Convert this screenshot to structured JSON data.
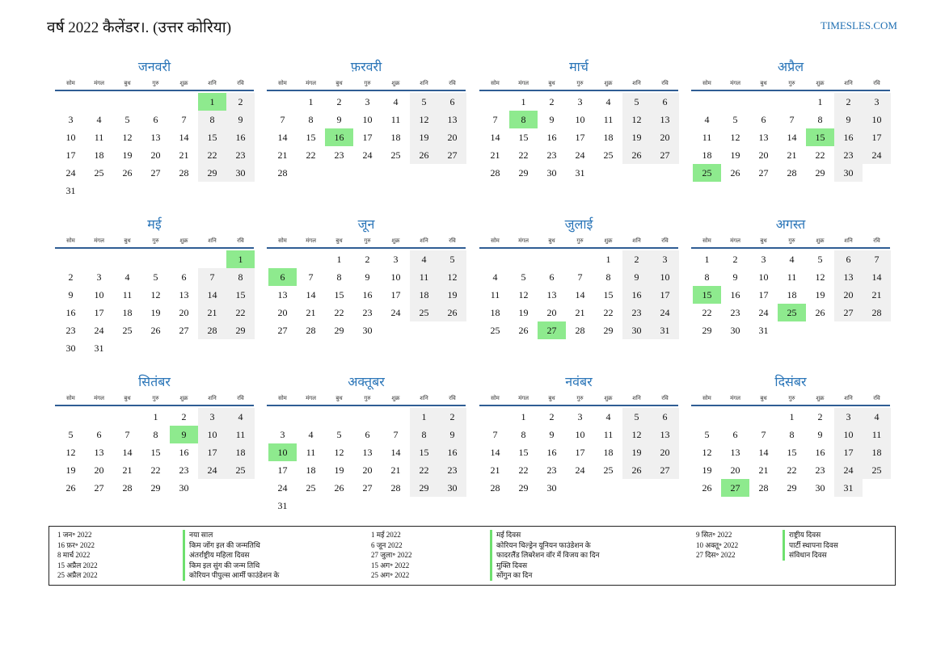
{
  "title": "वर्ष 2022 कैलेंडर।. (उत्तर कोरिया)",
  "brand": "TIMESLES.COM",
  "day_names": [
    "सोम",
    "मंगल",
    "बुध",
    "गुरु",
    "शुक्र",
    "शनि",
    "रवि"
  ],
  "months": [
    {
      "name": "जनवरी",
      "start": 5,
      "days": 31,
      "holidays": [
        1
      ]
    },
    {
      "name": "फ़रवरी",
      "start": 1,
      "days": 28,
      "holidays": [
        16
      ]
    },
    {
      "name": "मार्च",
      "start": 1,
      "days": 31,
      "holidays": [
        8
      ]
    },
    {
      "name": "अप्रैल",
      "start": 4,
      "days": 30,
      "holidays": [
        15,
        25
      ]
    },
    {
      "name": "मई",
      "start": 6,
      "days": 31,
      "holidays": [
        1
      ]
    },
    {
      "name": "जून",
      "start": 2,
      "days": 30,
      "holidays": [
        6
      ]
    },
    {
      "name": "जुलाई",
      "start": 4,
      "days": 31,
      "holidays": [
        27
      ]
    },
    {
      "name": "अगस्त",
      "start": 0,
      "days": 31,
      "holidays": [
        15,
        25
      ]
    },
    {
      "name": "सितंबर",
      "start": 3,
      "days": 30,
      "holidays": [
        9
      ]
    },
    {
      "name": "अक्तूबर",
      "start": 5,
      "days": 31,
      "holidays": [
        10
      ]
    },
    {
      "name": "नवंबर",
      "start": 1,
      "days": 30,
      "holidays": []
    },
    {
      "name": "दिसंबर",
      "start": 3,
      "days": 31,
      "holidays": [
        27
      ]
    }
  ],
  "legend": {
    "col1_dates": [
      "1 जन॰ 2022",
      "16 फ़र॰ 2022",
      "8 मार्च 2022",
      "15 अप्रैल 2022",
      "25 अप्रैल 2022"
    ],
    "col1_names": [
      "नया साल",
      "किम जोंग इल की जन्मतिथि",
      "अंतर्राष्ट्रीय महिला दिवस",
      "किम इल सुंग की जन्म तिथि",
      "कोरियन पीपुल्स आर्मी फाउंडेशन के"
    ],
    "col2_dates": [
      "1 मई 2022",
      "6 जून 2022",
      "27 जुला॰ 2022",
      "15 अग॰ 2022",
      "25 अग॰ 2022"
    ],
    "col2_names": [
      "मई दिवस",
      "कोरियन चिल्ड्रेन यूनियन फाउंडेशन के",
      "फादरलैंड लिबरेशन वॉर में विजय का दिन",
      "मुक्ति दिवस",
      "सोंगुन का दिन"
    ],
    "col3_dates": [
      "9 सित॰ 2022",
      "10 अक्तू॰ 2022",
      "27 दिस॰ 2022"
    ],
    "col3_names": [
      "राष्ट्रीय दिवस",
      "पार्टी स्थापना दिवस",
      "संविधान दिवस"
    ]
  }
}
